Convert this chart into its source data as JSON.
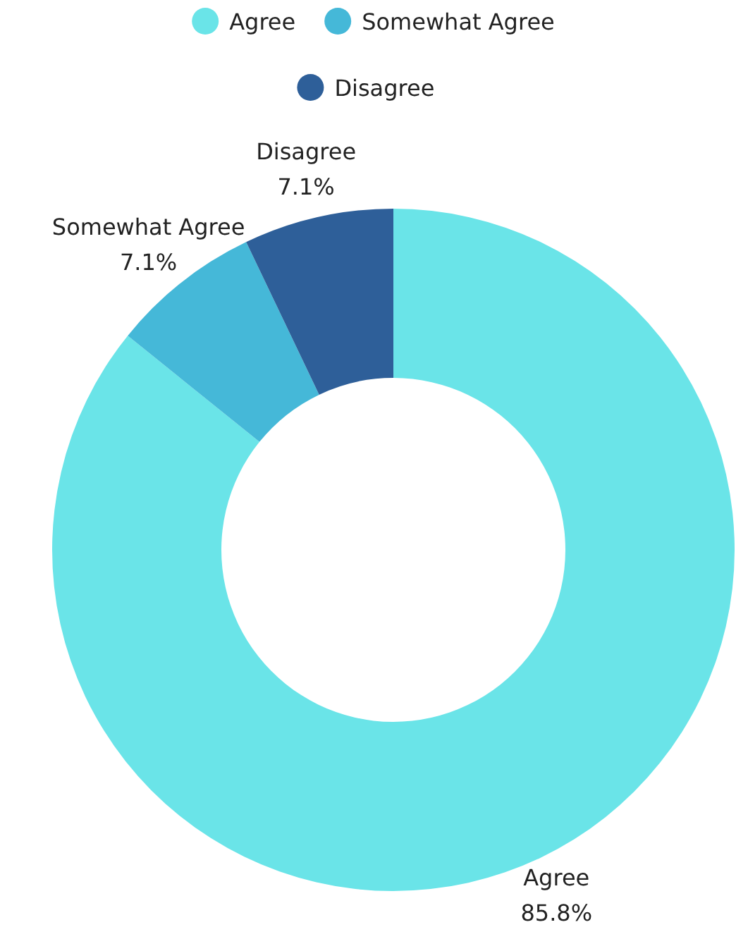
{
  "chart_data": {
    "type": "donut",
    "categories": [
      "Agree",
      "Somewhat Agree",
      "Disagree"
    ],
    "values": [
      85.8,
      7.1,
      7.1
    ],
    "value_labels": [
      "85.8%",
      "7.1%",
      "7.1%"
    ],
    "colors": [
      "#6ae4e8",
      "#45b8d8",
      "#2e5f99"
    ],
    "legend": "top",
    "marker": "circle"
  }
}
